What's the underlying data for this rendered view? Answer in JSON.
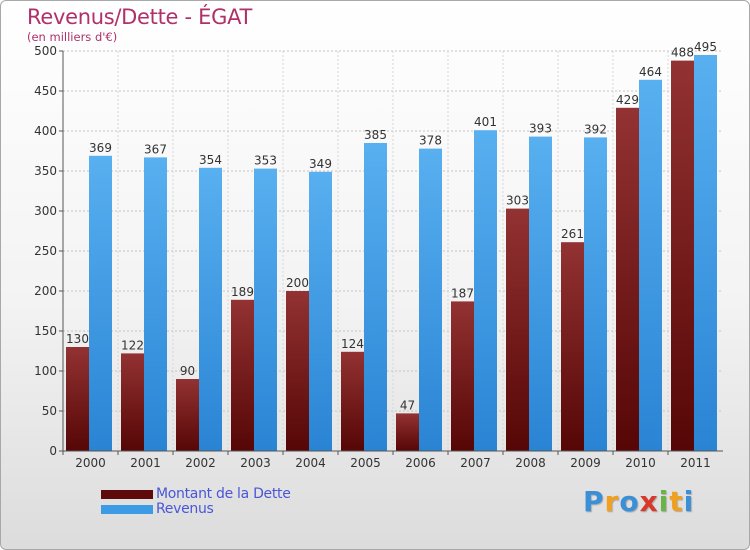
{
  "header": {
    "title": "Revenus/Dette - ÉGAT",
    "subtitle": "(en milliers d'€)"
  },
  "chart_data": {
    "type": "bar",
    "categories": [
      "2000",
      "2001",
      "2002",
      "2003",
      "2004",
      "2005",
      "2006",
      "2007",
      "2008",
      "2009",
      "2010",
      "2011"
    ],
    "series": [
      {
        "name": "Montant de la Dette",
        "color": "#7a1c1c",
        "values": [
          130,
          122,
          90,
          189,
          200,
          124,
          47,
          187,
          303,
          261,
          429,
          488
        ]
      },
      {
        "name": "Revenus",
        "color": "#3d9be6",
        "values": [
          369,
          367,
          354,
          353,
          349,
          385,
          378,
          401,
          393,
          392,
          464,
          495
        ]
      }
    ],
    "yticks": [
      "0",
      "50",
      "100",
      "150",
      "200",
      "250",
      "300",
      "350",
      "400",
      "450",
      "500"
    ],
    "ylim": [
      0,
      500
    ],
    "grid": true,
    "legend_position": "bottom-left"
  },
  "legend": {
    "items": [
      {
        "label": "Montant de la Dette",
        "color": "#5e0a0a"
      },
      {
        "label": "Revenus",
        "color": "#3d9be6"
      }
    ]
  },
  "branding": {
    "letters": [
      "P",
      "r",
      "o",
      "x",
      "i",
      "t",
      "i"
    ],
    "colors": [
      "#3a8fd6",
      "#f0a01e",
      "#3a8fd6",
      "#d83a2a",
      "#6ab446",
      "#f0a01e",
      "#3a8fd6"
    ]
  }
}
